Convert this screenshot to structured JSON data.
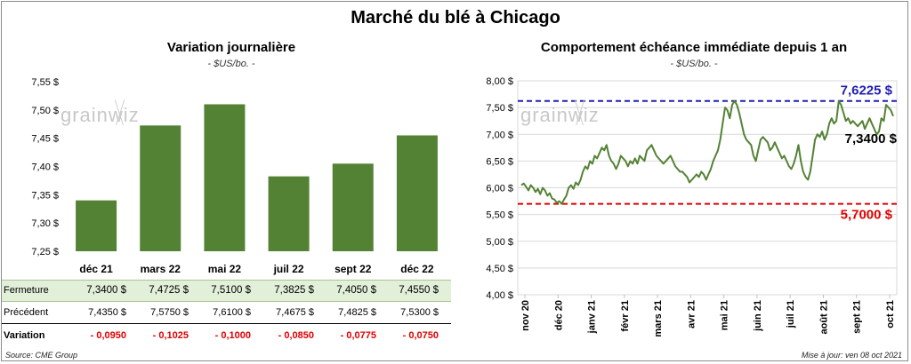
{
  "title": "Marché du blé à Chicago",
  "left": {
    "subtitle": "Variation journalière",
    "unit": "- $US/bo. -"
  },
  "right": {
    "subtitle": "Comportement échéance immédiate depuis 1 an",
    "unit": "- $US/bo. -"
  },
  "logo_text": "grainwiz",
  "table": {
    "row_labels": [
      "Fermeture",
      "Précédent",
      "Variation"
    ],
    "fermeture": [
      "7,3400  $",
      "7,4725  $",
      "7,5100  $",
      "7,3825  $",
      "7,4050  $",
      "7,4550  $"
    ],
    "precedent": [
      "7,4350  $",
      "7,5750  $",
      "7,6100  $",
      "7,4675  $",
      "7,4825  $",
      "7,5300  $"
    ],
    "variation": [
      "- 0,0950",
      "- 0,1025",
      "- 0,1000",
      "- 0,0850",
      "- 0,0775",
      "- 0,0750"
    ]
  },
  "source": "Source: CME Group",
  "updated": "Mise à jour: ven 08 oct 2021",
  "colors": {
    "bar": "#548235",
    "line": "#548235",
    "max": "#1f1fb4",
    "min": "#e00000"
  },
  "chart_data": [
    {
      "type": "bar",
      "categories": [
        "déc 21",
        "mars 22",
        "mai 22",
        "juil 22",
        "sept 22",
        "déc 22"
      ],
      "values": [
        7.34,
        7.4725,
        7.51,
        7.3825,
        7.405,
        7.455
      ],
      "ylim": [
        7.25,
        7.55
      ],
      "yticks": [
        "7,25 $",
        "7,30 $",
        "7,35 $",
        "7,40 $",
        "7,45 $",
        "7,50 $",
        "7,55 $"
      ],
      "grid": false
    },
    {
      "type": "line",
      "x_tick_labels": [
        "nov 20",
        "déc 20",
        "janv 21",
        "févr 21",
        "mars 21",
        "avr 21",
        "mai 21",
        "juin 21",
        "juil 21",
        "août 21",
        "sept 21",
        "oct 21"
      ],
      "ylim": [
        4.0,
        8.0
      ],
      "yticks": [
        "4,00 $",
        "4,50 $",
        "5,00 $",
        "5,50 $",
        "6,00 $",
        "6,50 $",
        "7,00 $",
        "7,50 $",
        "8,00 $"
      ],
      "grid": true,
      "max": {
        "value": 7.6225,
        "label": "7,6225 $"
      },
      "min": {
        "value": 5.7,
        "label": "5,7000 $"
      },
      "last": {
        "value": 7.34,
        "label": "7,3400 $"
      },
      "series": [
        {
          "values": [
            6.05,
            6.08,
            6.02,
            5.95,
            6.05,
            6.0,
            5.92,
            5.98,
            5.88,
            6.0,
            5.95,
            5.85,
            5.9,
            5.8,
            5.78,
            5.72,
            5.75,
            5.7,
            5.78,
            5.85,
            6.0,
            6.05,
            5.98,
            6.1,
            6.05,
            6.15,
            6.3,
            6.4,
            6.35,
            6.5,
            6.45,
            6.6,
            6.55,
            6.65,
            6.75,
            6.7,
            6.8,
            6.6,
            6.5,
            6.45,
            6.35,
            6.45,
            6.6,
            6.55,
            6.5,
            6.4,
            6.5,
            6.45,
            6.55,
            6.45,
            6.6,
            6.55,
            6.5,
            6.7,
            6.75,
            6.8,
            6.7,
            6.6,
            6.55,
            6.5,
            6.45,
            6.5,
            6.55,
            6.6,
            6.5,
            6.4,
            6.35,
            6.3,
            6.3,
            6.25,
            6.2,
            6.1,
            6.15,
            6.2,
            6.25,
            6.2,
            6.3,
            6.25,
            6.15,
            6.25,
            6.35,
            6.5,
            6.6,
            6.7,
            6.9,
            7.2,
            7.5,
            7.45,
            7.3,
            7.55,
            7.6225,
            7.55,
            7.4,
            7.2,
            7.0,
            6.9,
            6.85,
            6.8,
            6.6,
            6.5,
            6.7,
            6.9,
            6.95,
            6.9,
            6.85,
            6.7,
            6.75,
            6.85,
            6.75,
            6.65,
            6.55,
            6.6,
            6.5,
            6.4,
            6.35,
            6.45,
            6.6,
            6.8,
            6.5,
            6.3,
            6.2,
            6.15,
            6.3,
            6.6,
            6.9,
            7.0,
            6.95,
            7.05,
            6.9,
            7.0,
            7.2,
            7.3,
            7.2,
            7.25,
            7.6225,
            7.55,
            7.4,
            7.25,
            7.3,
            7.2,
            7.25,
            7.2,
            7.15,
            7.2,
            7.25,
            7.1,
            7.2,
            7.3,
            7.2,
            7.1,
            7.0,
            7.05,
            7.3,
            7.25,
            7.55,
            7.5,
            7.45,
            7.34
          ]
        }
      ]
    }
  ]
}
